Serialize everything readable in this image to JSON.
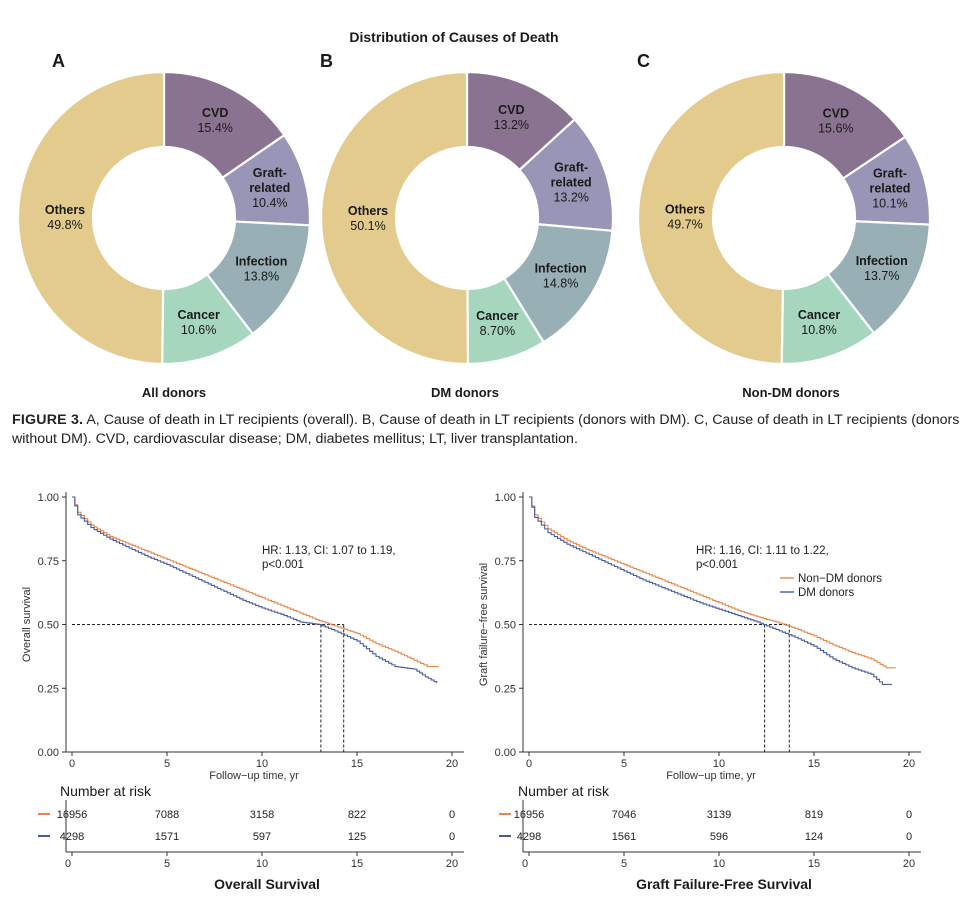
{
  "figure3": {
    "title": "Distribution of Causes of Death",
    "caption_label": "FIGURE 3.",
    "caption_text": "A, Cause of death in LT recipients (overall). B, Cause of death in LT recipients (donors with DM). C, Cause of death in LT recipients (donors without DM). CVD, cardiovascular disease; DM, diabetes mellitus; LT, liver transplantation."
  },
  "colors": {
    "Others": "#e3cb8e",
    "CVD": "#8a7391",
    "Graft-related": "#9895b6",
    "Infection": "#97afb5",
    "Cancer": "#a6d6be",
    "non_dm": "#e8864a",
    "dm": "#4a5aa0"
  },
  "chart_data": [
    {
      "type": "pie",
      "panel": "A",
      "subtitle": "All donors",
      "slices": [
        {
          "label": "CVD",
          "value": 15.4,
          "text": "15.4%"
        },
        {
          "label": "Graft-related",
          "value": 10.4,
          "text": "10.4%"
        },
        {
          "label": "Infection",
          "value": 13.8,
          "text": "13.8%"
        },
        {
          "label": "Cancer",
          "value": 10.6,
          "text": "10.6%"
        },
        {
          "label": "Others",
          "value": 49.8,
          "text": "49.8%"
        }
      ]
    },
    {
      "type": "pie",
      "panel": "B",
      "subtitle": "DM donors",
      "slices": [
        {
          "label": "CVD",
          "value": 13.2,
          "text": "13.2%"
        },
        {
          "label": "Graft-related",
          "value": 13.2,
          "text": "13.2%"
        },
        {
          "label": "Infection",
          "value": 14.8,
          "text": "14.8%"
        },
        {
          "label": "Cancer",
          "value": 8.7,
          "text": "8.70%"
        },
        {
          "label": "Others",
          "value": 50.1,
          "text": "50.1%"
        }
      ]
    },
    {
      "type": "pie",
      "panel": "C",
      "subtitle": "Non-DM donors",
      "slices": [
        {
          "label": "CVD",
          "value": 15.6,
          "text": "15.6%"
        },
        {
          "label": "Graft-related",
          "value": 10.1,
          "text": "10.1%"
        },
        {
          "label": "Infection",
          "value": 13.7,
          "text": "13.7%"
        },
        {
          "label": "Cancer",
          "value": 10.8,
          "text": "10.8%"
        },
        {
          "label": "Others",
          "value": 49.7,
          "text": "49.7%"
        }
      ]
    },
    {
      "type": "line",
      "title": "Overall Survival",
      "xlabel": "Follow−up time, yr",
      "ylabel": "Overall survival",
      "xlim": [
        0,
        20
      ],
      "ylim": [
        0,
        1
      ],
      "xticks": [
        0,
        5,
        10,
        15,
        20
      ],
      "yticks": [
        "0.00",
        "0.25",
        "0.50",
        "0.75",
        "1.00"
      ],
      "annotation": [
        "HR: 1.13, CI: 1.07 to 1.19,",
        "p<0.001"
      ],
      "median_line": 0.5,
      "series": [
        {
          "name": "Non−DM donors",
          "color_key": "non_dm",
          "median_x": 14.3,
          "points": [
            [
              0,
              1.0
            ],
            [
              0.3,
              0.94
            ],
            [
              1,
              0.89
            ],
            [
              2,
              0.845
            ],
            [
              3,
              0.815
            ],
            [
              4,
              0.785
            ],
            [
              5,
              0.755
            ],
            [
              6,
              0.725
            ],
            [
              7,
              0.695
            ],
            [
              8,
              0.665
            ],
            [
              9,
              0.635
            ],
            [
              10,
              0.605
            ],
            [
              11,
              0.575
            ],
            [
              12,
              0.545
            ],
            [
              13,
              0.515
            ],
            [
              14,
              0.49
            ],
            [
              15,
              0.465
            ],
            [
              16,
              0.425
            ],
            [
              17,
              0.395
            ],
            [
              18,
              0.36
            ],
            [
              18.7,
              0.335
            ],
            [
              19.3,
              0.335
            ]
          ]
        },
        {
          "name": "DM donors",
          "color_key": "dm",
          "median_x": 13.1,
          "points": [
            [
              0,
              1.0
            ],
            [
              0.3,
              0.93
            ],
            [
              1,
              0.88
            ],
            [
              2,
              0.835
            ],
            [
              3,
              0.8
            ],
            [
              4,
              0.765
            ],
            [
              5,
              0.735
            ],
            [
              6,
              0.7
            ],
            [
              7,
              0.665
            ],
            [
              8,
              0.63
            ],
            [
              9,
              0.595
            ],
            [
              10,
              0.565
            ],
            [
              11,
              0.54
            ],
            [
              12,
              0.51
            ],
            [
              13,
              0.5
            ],
            [
              14,
              0.47
            ],
            [
              15,
              0.435
            ],
            [
              16,
              0.375
            ],
            [
              17,
              0.335
            ],
            [
              18,
              0.325
            ],
            [
              18.6,
              0.295
            ],
            [
              19.2,
              0.27
            ]
          ]
        }
      ],
      "risk_table": {
        "title": "Number at risk",
        "xticks": [
          0,
          5,
          10,
          15,
          20
        ],
        "rows": [
          {
            "color_key": "non_dm",
            "values": [
              "16956",
              "7088",
              "3158",
              "822",
              "0"
            ]
          },
          {
            "color_key": "dm",
            "values": [
              "4298",
              "1571",
              "597",
              "125",
              "0"
            ]
          }
        ]
      }
    },
    {
      "type": "line",
      "title": "Graft Failure-Free Survival",
      "xlabel": "Follow−up time, yr",
      "ylabel": "Graft failure−free survival",
      "xlim": [
        0,
        20
      ],
      "ylim": [
        0,
        1
      ],
      "xticks": [
        0,
        5,
        10,
        15,
        20
      ],
      "yticks": [
        "0.00",
        "0.25",
        "0.50",
        "0.75",
        "1.00"
      ],
      "annotation": [
        "HR: 1.16, CI: 1.11 to 1.22,",
        "p<0.001"
      ],
      "median_line": 0.5,
      "legend": [
        "Non−DM donors",
        "DM donors"
      ],
      "series": [
        {
          "name": "Non−DM donors",
          "color_key": "non_dm",
          "median_x": 13.7,
          "points": [
            [
              0,
              1.0
            ],
            [
              0.3,
              0.93
            ],
            [
              1,
              0.875
            ],
            [
              2,
              0.83
            ],
            [
              3,
              0.795
            ],
            [
              4,
              0.765
            ],
            [
              5,
              0.735
            ],
            [
              6,
              0.705
            ],
            [
              7,
              0.675
            ],
            [
              8,
              0.645
            ],
            [
              9,
              0.615
            ],
            [
              10,
              0.585
            ],
            [
              11,
              0.555
            ],
            [
              12,
              0.53
            ],
            [
              13,
              0.51
            ],
            [
              14,
              0.485
            ],
            [
              15,
              0.455
            ],
            [
              16,
              0.42
            ],
            [
              17,
              0.39
            ],
            [
              18,
              0.365
            ],
            [
              18.8,
              0.33
            ],
            [
              19.3,
              0.33
            ]
          ]
        },
        {
          "name": "DM donors",
          "color_key": "dm",
          "median_x": 12.4,
          "points": [
            [
              0,
              1.0
            ],
            [
              0.3,
              0.92
            ],
            [
              1,
              0.86
            ],
            [
              2,
              0.815
            ],
            [
              3,
              0.78
            ],
            [
              4,
              0.745
            ],
            [
              5,
              0.71
            ],
            [
              6,
              0.675
            ],
            [
              7,
              0.645
            ],
            [
              8,
              0.615
            ],
            [
              9,
              0.585
            ],
            [
              10,
              0.56
            ],
            [
              11,
              0.535
            ],
            [
              12,
              0.51
            ],
            [
              13,
              0.48
            ],
            [
              14,
              0.45
            ],
            [
              15,
              0.415
            ],
            [
              16,
              0.365
            ],
            [
              17,
              0.33
            ],
            [
              18,
              0.305
            ],
            [
              18.6,
              0.265
            ],
            [
              19.1,
              0.265
            ]
          ]
        }
      ],
      "risk_table": {
        "title": "Number at risk",
        "xticks": [
          0,
          5,
          10,
          15,
          20
        ],
        "rows": [
          {
            "color_key": "non_dm",
            "values": [
              "16956",
              "7046",
              "3139",
              "819",
              "0"
            ]
          },
          {
            "color_key": "dm",
            "values": [
              "4298",
              "1561",
              "596",
              "124",
              "0"
            ]
          }
        ]
      }
    }
  ]
}
